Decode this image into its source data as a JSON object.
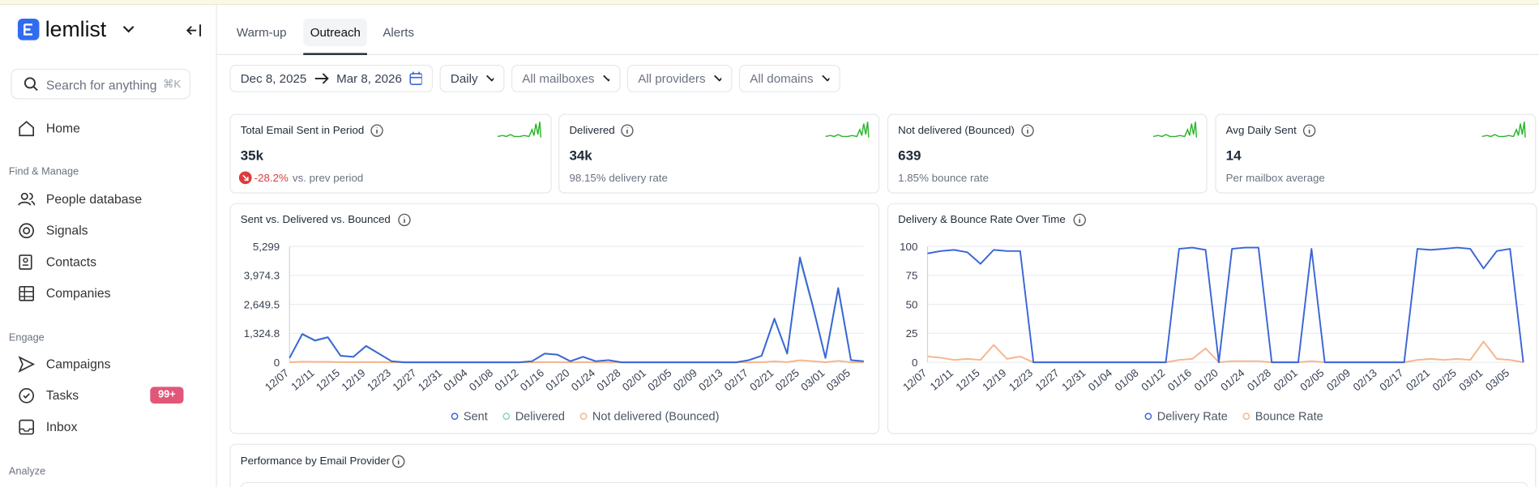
{
  "sidebar": {
    "brand": "lemlist",
    "search": "Search for anything",
    "shortcut": "⌘K",
    "home": "Home",
    "sections": [
      {
        "label": "Find & Manage",
        "items": [
          "People database",
          "Signals",
          "Contacts",
          "Companies"
        ]
      },
      {
        "label": "Engage",
        "items": [
          "Campaigns",
          "Tasks",
          "Inbox"
        ]
      },
      {
        "label": "Analyze",
        "items": []
      }
    ],
    "tasks_badge": "99+"
  },
  "tabs": [
    "Warm-up",
    "Outreach",
    "Alerts"
  ],
  "filters": {
    "start": "Dec 8, 2025",
    "end": "Mar 8, 2026",
    "granularity": "Daily",
    "mailboxes": "All mailboxes",
    "providers": "All providers",
    "domains": "All domains"
  },
  "kpis": [
    {
      "title": "Total Email Sent in Period",
      "value": "35k",
      "change": "-28.2%",
      "note": "vs. prev period"
    },
    {
      "title": "Delivered",
      "value": "34k",
      "note": "98.15% delivery rate"
    },
    {
      "title": "Not delivered (Bounced)",
      "value": "639",
      "note": "1.85% bounce rate"
    },
    {
      "title": "Avg Daily Sent",
      "value": "14",
      "note": "Per mailbox average"
    }
  ],
  "chart_data": [
    {
      "type": "line",
      "title": "Sent vs. Delivered vs. Bounced",
      "categories": [
        "12/07",
        null,
        "12/11",
        null,
        "12/15",
        null,
        "12/19",
        null,
        "12/23",
        null,
        "12/27",
        null,
        "12/31",
        null,
        "01/04",
        null,
        "01/08",
        null,
        "01/12",
        null,
        "01/16",
        null,
        "01/20",
        null,
        "01/24",
        null,
        "01/28",
        null,
        "02/01",
        null,
        "02/05",
        null,
        "02/09",
        null,
        "02/13",
        null,
        "02/17",
        null,
        "02/21",
        null,
        "02/25",
        null,
        "03/01",
        null,
        "03/05",
        null
      ],
      "ylim": [
        0,
        5299
      ],
      "yticks": [
        0,
        {
          "value": 1324.8,
          "label": "1,324.8"
        },
        {
          "value": 2649.5,
          "label": "2,649.5"
        },
        {
          "value": 3974.3,
          "label": "3,974.3"
        },
        {
          "value": 5299,
          "label": "5,299"
        }
      ],
      "grid": true,
      "series": [
        {
          "name": "Sent",
          "color": "#3a66d6",
          "values": [
            200,
            1300,
            1000,
            1150,
            300,
            250,
            750,
            400,
            50,
            0,
            0,
            0,
            0,
            0,
            0,
            0,
            0,
            0,
            0,
            50,
            400,
            350,
            50,
            250,
            50,
            100,
            0,
            0,
            0,
            0,
            0,
            0,
            0,
            0,
            0,
            0,
            100,
            300,
            2000,
            400,
            4800,
            2600,
            200,
            3400,
            100,
            50
          ]
        },
        {
          "name": "Delivered",
          "color": "#7fd6c6",
          "values": [
            196,
            1274,
            980,
            1127,
            294,
            245,
            735,
            392,
            49,
            0,
            0,
            0,
            0,
            0,
            0,
            0,
            0,
            0,
            0,
            49,
            392,
            343,
            49,
            245,
            49,
            98,
            0,
            0,
            0,
            0,
            0,
            0,
            0,
            0,
            0,
            0,
            98,
            294,
            1960,
            392,
            4704,
            2548,
            196,
            3332,
            98,
            49
          ]
        },
        {
          "name": "Not delivered (Bounced)",
          "color": "#f6b48c",
          "values": [
            4,
            26,
            20,
            23,
            6,
            5,
            15,
            8,
            1,
            0,
            0,
            0,
            0,
            0,
            0,
            0,
            0,
            0,
            0,
            1,
            8,
            7,
            1,
            5,
            1,
            2,
            0,
            0,
            0,
            0,
            0,
            0,
            0,
            0,
            0,
            0,
            2,
            6,
            40,
            8,
            96,
            52,
            4,
            68,
            2,
            1
          ]
        }
      ]
    },
    {
      "type": "line",
      "title": "Delivery & Bounce Rate Over Time",
      "categories": [
        "12/07",
        null,
        "12/11",
        null,
        "12/15",
        null,
        "12/19",
        null,
        "12/23",
        null,
        "12/27",
        null,
        "12/31",
        null,
        "01/04",
        null,
        "01/08",
        null,
        "01/12",
        null,
        "01/16",
        null,
        "01/20",
        null,
        "01/24",
        null,
        "01/28",
        null,
        "02/01",
        null,
        "02/05",
        null,
        "02/09",
        null,
        "02/13",
        null,
        "02/17",
        null,
        "02/21",
        null,
        "02/25",
        null,
        "03/01",
        null,
        "03/05",
        null
      ],
      "ylim": [
        0,
        100
      ],
      "yticks": [
        0,
        25,
        50,
        75,
        100
      ],
      "grid": true,
      "series": [
        {
          "name": "Delivery Rate",
          "color": "#3a66d6",
          "values": [
            94,
            96,
            97,
            95,
            85,
            97,
            96,
            96,
            0,
            0,
            0,
            0,
            0,
            0,
            0,
            0,
            0,
            0,
            0,
            98,
            99,
            97,
            0,
            98,
            99,
            99,
            0,
            0,
            0,
            98,
            0,
            0,
            0,
            0,
            0,
            0,
            0,
            98,
            97,
            98,
            99,
            98,
            81,
            96,
            98,
            0
          ]
        },
        {
          "name": "Bounce Rate",
          "color": "#f6b48c",
          "values": [
            5,
            4,
            2,
            3,
            2,
            15,
            3,
            5,
            0,
            0,
            0,
            0,
            0,
            0,
            0,
            0,
            0,
            0,
            0,
            2,
            3,
            12,
            0,
            1,
            1,
            1,
            0,
            0,
            0,
            1,
            0,
            0,
            0,
            0,
            0,
            0,
            0,
            2,
            3,
            2,
            3,
            2,
            18,
            3,
            2,
            0
          ]
        }
      ]
    }
  ],
  "performance": {
    "title": "Performance by Email Provider"
  }
}
